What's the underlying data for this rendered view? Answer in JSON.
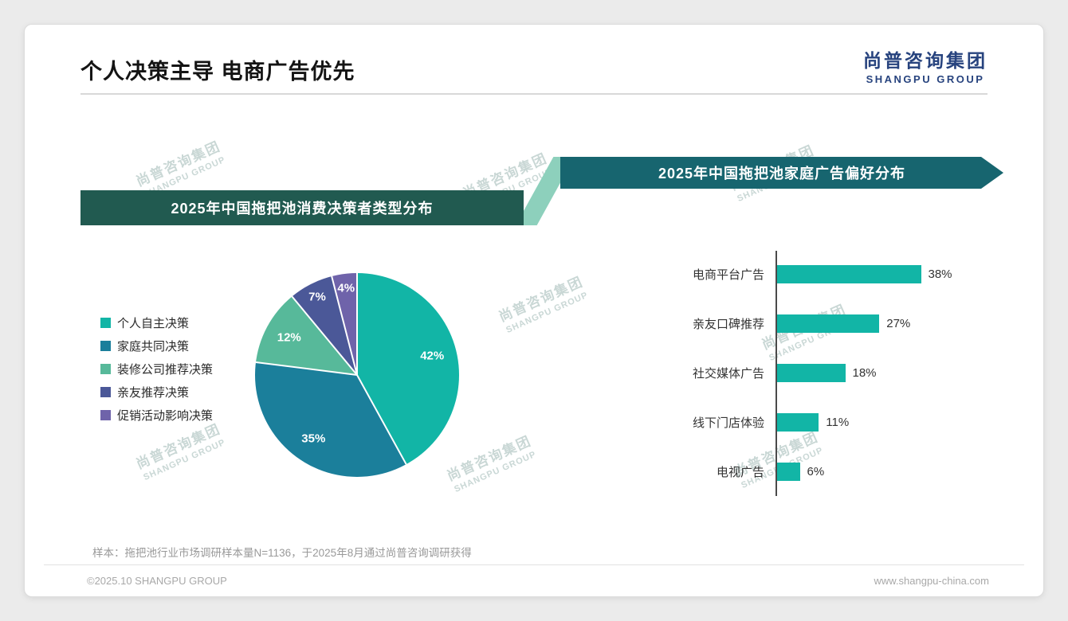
{
  "page": {
    "title": "个人决策主导 电商广告优先"
  },
  "logo": {
    "cn": "尚普咨询集团",
    "en": "SHANGPU GROUP"
  },
  "watermark": {
    "cn": "尚普咨询集团",
    "en": "SHANGPU GROUP"
  },
  "banners": {
    "left_color": "#215a50",
    "right_color": "#17656f",
    "connector_color": "#8dd0bc"
  },
  "colors": {
    "logo_blue": "#27437e",
    "accent_teal": "#12b5a6"
  },
  "chart_data": [
    {
      "type": "pie",
      "title": "2025年中国拖把池消费决策者类型分布",
      "labels": [
        "个人自主决策",
        "家庭共同决策",
        "装修公司推荐决策",
        "亲友推荐决策",
        "促销活动影响决策"
      ],
      "values": [
        42,
        35,
        12,
        7,
        4
      ],
      "value_labels": [
        "42%",
        "35%",
        "12%",
        "7%",
        "4%"
      ],
      "colors": [
        "#12b5a6",
        "#1b7f9b",
        "#57b99a",
        "#4b5898",
        "#6f63aa"
      ],
      "legend_position": "left",
      "start_angle_deg": 0,
      "direction": "clockwise"
    },
    {
      "type": "bar",
      "title": "2025年中国拖把池家庭广告偏好分布",
      "orientation": "horizontal",
      "categories": [
        "电商平台广告",
        "亲友口碑推荐",
        "社交媒体广告",
        "线下门店体验",
        "电视广告"
      ],
      "values": [
        38,
        27,
        18,
        11,
        6
      ],
      "value_labels": [
        "38%",
        "27%",
        "18%",
        "11%",
        "6%"
      ],
      "bar_color": "#12b5a6",
      "xlim": [
        0,
        40
      ],
      "grid": false,
      "legend": false
    }
  ],
  "footnote": "样本：拖把池行业市场调研样本量N=1136，于2025年8月通过尚普咨询调研获得",
  "footer": {
    "left": "©2025.10 SHANGPU GROUP",
    "right": "www.shangpu-china.com"
  }
}
